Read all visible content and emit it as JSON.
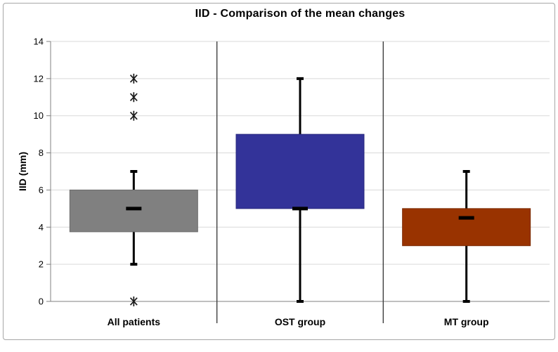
{
  "page": {
    "background": "#ffffff",
    "frame_border_color": "#a6a6a6"
  },
  "chart_data": {
    "type": "boxplot",
    "title": "IID - Comparison of the mean changes",
    "ylabel": "IID (mm)",
    "xlabel": "",
    "ylim": [
      0,
      14
    ],
    "ytick_values": [
      0,
      2,
      4,
      6,
      8,
      10,
      12,
      14
    ],
    "ytick_labels": [
      "0",
      "2",
      "4",
      "6",
      "8",
      "10",
      "12",
      "14"
    ],
    "grid": "horizontal",
    "legend": "none",
    "categories": [
      "All patients",
      "OST group",
      "MT group"
    ],
    "series": [
      {
        "name": "All patients",
        "box_color": "#808080",
        "box_border": "#6b6b6b",
        "q1": 3.75,
        "q3": 6,
        "mean": 5,
        "whisker_low": 2,
        "whisker_high": 7,
        "outliers": [
          12,
          11,
          10,
          0
        ]
      },
      {
        "name": "OST group",
        "box_color": "#333399",
        "box_border": "#28287d",
        "q1": 5,
        "q3": 9,
        "mean": 5,
        "whisker_low": 0,
        "whisker_high": 12,
        "outliers": []
      },
      {
        "name": "MT group",
        "box_color": "#993300",
        "box_border": "#7a2900",
        "q1": 3,
        "q3": 5,
        "mean": 4.5,
        "whisker_low": 0,
        "whisker_high": 7,
        "outliers": []
      }
    ],
    "colors": {
      "gridline": "#d9d9d9",
      "axis": "#808080",
      "separator": "#3f3f3f",
      "whisker": "#000000",
      "marker": "#1a1a1a",
      "text": "#000000"
    }
  }
}
